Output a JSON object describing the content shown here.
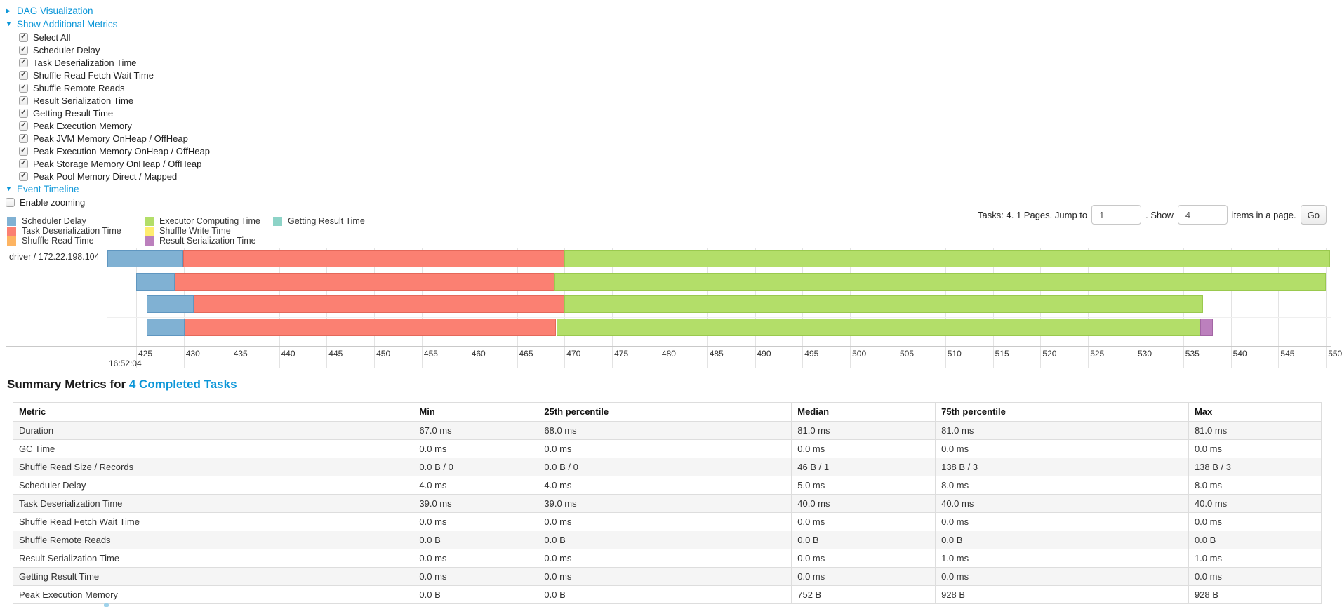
{
  "theme": {
    "link_color": "#0b96d8"
  },
  "controls": {
    "dag_label": "DAG Visualization",
    "metrics_label": "Show Additional Metrics",
    "metric_items": [
      "Select All",
      "Scheduler Delay",
      "Task Deserialization Time",
      "Shuffle Read Fetch Wait Time",
      "Shuffle Remote Reads",
      "Result Serialization Time",
      "Getting Result Time",
      "Peak Execution Memory",
      "Peak JVM Memory OnHeap / OffHeap",
      "Peak Execution Memory OnHeap / OffHeap",
      "Peak Storage Memory OnHeap / OffHeap",
      "Peak Pool Memory Direct / Mapped"
    ],
    "timeline_label": "Event Timeline",
    "enable_zooming_label": "Enable zooming"
  },
  "pagination": {
    "summary": "Tasks: 4. 1 Pages. Jump to",
    "jump_value": "1",
    "show_label": ". Show",
    "show_value": "4",
    "suffix": "items in a page.",
    "go_label": "Go"
  },
  "chart_data": {
    "type": "timeline",
    "title": "Event Timeline",
    "group": "driver / 172.22.198.104",
    "time_label": "16:52:04",
    "axis": {
      "min": 421.9,
      "max": 550.5,
      "tick_start": 425,
      "tick_end": 550,
      "tick_step": 5,
      "unit": "ms within 16:52:04"
    },
    "legend": [
      {
        "label": "Scheduler Delay",
        "type": "scheduler_delay",
        "col": 1
      },
      {
        "label": "Task Deserialization Time",
        "type": "deserialization",
        "col": 1
      },
      {
        "label": "Shuffle Read Time",
        "type": "shuffle_read",
        "col": 1
      },
      {
        "label": "Executor Computing Time",
        "type": "compute",
        "col": 2
      },
      {
        "label": "Shuffle Write Time",
        "type": "shuffle_write",
        "col": 2
      },
      {
        "label": "Result Serialization Time",
        "type": "result_serialization",
        "col": 2
      },
      {
        "label": "Getting Result Time",
        "type": "getting_result",
        "col": 3
      }
    ],
    "colors": {
      "scheduler_delay": {
        "fill": "#80B1D3",
        "border": "#5f96c0"
      },
      "deserialization": {
        "fill": "#FB8072",
        "border": "#e4685a"
      },
      "shuffle_read": {
        "fill": "#FDB462",
        "border": "#e69a45"
      },
      "compute": {
        "fill": "#B3DE69",
        "border": "#9ac94e"
      },
      "shuffle_write": {
        "fill": "#FFED6F",
        "border": "#e0cf4e"
      },
      "result_serialization": {
        "fill": "#BC80BD",
        "border": "#a366a4"
      },
      "getting_result": {
        "fill": "#8DD3C7",
        "border": "#6fbcae"
      }
    },
    "tasks": [
      {
        "segments": [
          {
            "type": "scheduler_delay",
            "from": 421.98,
            "to": 429.96
          },
          {
            "type": "deserialization",
            "from": 429.96,
            "to": 470.0
          },
          {
            "type": "compute",
            "from": 470.0,
            "to": 550.45
          }
        ]
      },
      {
        "segments": [
          {
            "type": "scheduler_delay",
            "from": 425.02,
            "to": 429.08
          },
          {
            "type": "deserialization",
            "from": 429.08,
            "to": 468.98
          },
          {
            "type": "compute",
            "from": 468.98,
            "to": 550.0
          }
        ]
      },
      {
        "segments": [
          {
            "type": "scheduler_delay",
            "from": 426.08,
            "to": 431.05
          },
          {
            "type": "deserialization",
            "from": 431.05,
            "to": 470.0
          },
          {
            "type": "compute",
            "from": 470.0,
            "to": 537.05
          }
        ]
      },
      {
        "segments": [
          {
            "type": "scheduler_delay",
            "from": 426.08,
            "to": 430.11
          },
          {
            "type": "deserialization",
            "from": 430.11,
            "to": 469.13
          },
          {
            "type": "compute",
            "from": 469.13,
            "to": 536.8
          },
          {
            "type": "result_serialization",
            "from": 536.8,
            "to": 538.1
          }
        ]
      }
    ]
  },
  "summary": {
    "title": "Summary Metrics for",
    "link": "4 Completed Tasks",
    "table": {
      "headers": [
        "Metric",
        "Min",
        "25th percentile",
        "Median",
        "75th percentile",
        "Max"
      ],
      "rows": [
        {
          "metric": "Duration",
          "values": [
            "67.0 ms",
            "68.0 ms",
            "81.0 ms",
            "81.0 ms",
            "81.0 ms"
          ]
        },
        {
          "metric": "GC Time",
          "values": [
            "0.0 ms",
            "0.0 ms",
            "0.0 ms",
            "0.0 ms",
            "0.0 ms"
          ]
        },
        {
          "metric": "Shuffle Read Size / Records",
          "values": [
            "0.0 B / 0",
            "0.0 B / 0",
            "46 B / 1",
            "138 B / 3",
            "138 B / 3"
          ]
        },
        {
          "metric": "Scheduler Delay",
          "values": [
            "4.0 ms",
            "4.0 ms",
            "5.0 ms",
            "8.0 ms",
            "8.0 ms"
          ]
        },
        {
          "metric": "Task Deserialization Time",
          "values": [
            "39.0 ms",
            "39.0 ms",
            "40.0 ms",
            "40.0 ms",
            "40.0 ms"
          ]
        },
        {
          "metric": "Shuffle Read Fetch Wait Time",
          "values": [
            "0.0 ms",
            "0.0 ms",
            "0.0 ms",
            "0.0 ms",
            "0.0 ms"
          ]
        },
        {
          "metric": "Shuffle Remote Reads",
          "values": [
            "0.0 B",
            "0.0 B",
            "0.0 B",
            "0.0 B",
            "0.0 B"
          ]
        },
        {
          "metric": "Result Serialization Time",
          "values": [
            "0.0 ms",
            "0.0 ms",
            "0.0 ms",
            "1.0 ms",
            "1.0 ms"
          ]
        },
        {
          "metric": "Getting Result Time",
          "values": [
            "0.0 ms",
            "0.0 ms",
            "0.0 ms",
            "0.0 ms",
            "0.0 ms"
          ]
        },
        {
          "metric": "Peak Execution Memory",
          "values": [
            "0.0 B",
            "0.0 B",
            "752 B",
            "928 B",
            "928 B"
          ]
        }
      ]
    }
  }
}
